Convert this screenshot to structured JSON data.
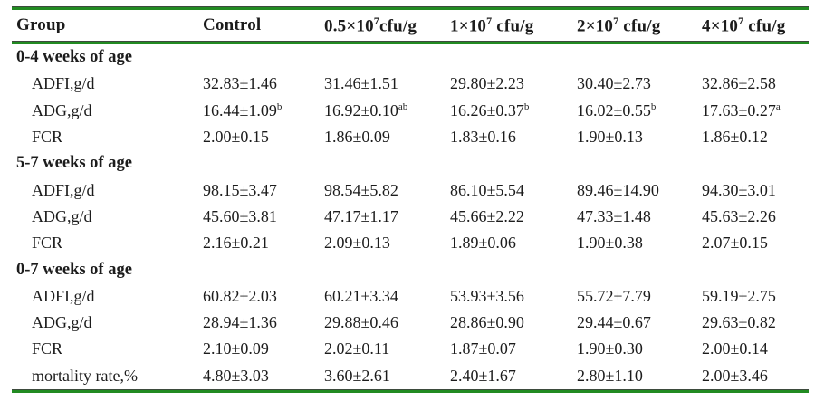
{
  "colors": {
    "rule_green": "#228B22",
    "rule_edge": "#3d4a3d",
    "text": "#1c1c1c",
    "background": "#ffffff"
  },
  "table": {
    "header": [
      {
        "text": "Group"
      },
      {
        "text": "Control"
      },
      {
        "base": "0.5×10",
        "sup": "7",
        "rest": "cfu/g"
      },
      {
        "base": "1×10",
        "sup": "7",
        "rest": " cfu/g"
      },
      {
        "base": "2×10",
        "sup": "7",
        "rest": " cfu/g"
      },
      {
        "base": "4×10",
        "sup": "7",
        "rest": " cfu/g"
      }
    ],
    "sections": [
      {
        "title": "0-4 weeks of age",
        "rows": [
          {
            "label": "ADFI,g/d",
            "values": [
              {
                "v": "32.83±1.46"
              },
              {
                "v": "31.46±1.51"
              },
              {
                "v": "29.80±2.23"
              },
              {
                "v": "30.40±2.73"
              },
              {
                "v": "32.86±2.58"
              }
            ]
          },
          {
            "label": "ADG,g/d",
            "values": [
              {
                "v": "16.44±1.09",
                "sup": "b"
              },
              {
                "v": "16.92±0.10",
                "sup": "ab"
              },
              {
                "v": "16.26±0.37",
                "sup": "b"
              },
              {
                "v": "16.02±0.55",
                "sup": "b"
              },
              {
                "v": "17.63±0.27",
                "sup": "a"
              }
            ]
          },
          {
            "label": "FCR",
            "values": [
              {
                "v": "2.00±0.15"
              },
              {
                "v": "1.86±0.09"
              },
              {
                "v": "1.83±0.16"
              },
              {
                "v": "1.90±0.13"
              },
              {
                "v": "1.86±0.12"
              }
            ]
          }
        ]
      },
      {
        "title": "5-7 weeks of age",
        "rows": [
          {
            "label": "ADFI,g/d",
            "values": [
              {
                "v": "98.15±3.47"
              },
              {
                "v": "98.54±5.82"
              },
              {
                "v": "86.10±5.54"
              },
              {
                "v": "89.46±14.90"
              },
              {
                "v": "94.30±3.01"
              }
            ]
          },
          {
            "label": "ADG,g/d",
            "values": [
              {
                "v": "45.60±3.81"
              },
              {
                "v": "47.17±1.17"
              },
              {
                "v": "45.66±2.22"
              },
              {
                "v": "47.33±1.48"
              },
              {
                "v": "45.63±2.26"
              }
            ]
          },
          {
            "label": "FCR",
            "values": [
              {
                "v": "2.16±0.21"
              },
              {
                "v": "2.09±0.13"
              },
              {
                "v": "1.89±0.06"
              },
              {
                "v": "1.90±0.38"
              },
              {
                "v": "2.07±0.15"
              }
            ]
          }
        ]
      },
      {
        "title": "0-7 weeks of age",
        "rows": [
          {
            "label": "ADFI,g/d",
            "values": [
              {
                "v": "60.82±2.03"
              },
              {
                "v": "60.21±3.34"
              },
              {
                "v": "53.93±3.56"
              },
              {
                "v": "55.72±7.79"
              },
              {
                "v": "59.19±2.75"
              }
            ]
          },
          {
            "label": "ADG,g/d",
            "values": [
              {
                "v": "28.94±1.36"
              },
              {
                "v": "29.88±0.46"
              },
              {
                "v": "28.86±0.90"
              },
              {
                "v": "29.44±0.67"
              },
              {
                "v": "29.63±0.82"
              }
            ]
          },
          {
            "label": "FCR",
            "values": [
              {
                "v": "2.10±0.09"
              },
              {
                "v": "2.02±0.11"
              },
              {
                "v": "1.87±0.07"
              },
              {
                "v": "1.90±0.30"
              },
              {
                "v": "2.00±0.14"
              }
            ]
          },
          {
            "label": "mortality rate,%",
            "values": [
              {
                "v": "4.80±3.03"
              },
              {
                "v": "3.60±2.61"
              },
              {
                "v": "2.40±1.67"
              },
              {
                "v": "2.80±1.10"
              },
              {
                "v": "2.00±3.46"
              }
            ]
          }
        ]
      }
    ]
  }
}
